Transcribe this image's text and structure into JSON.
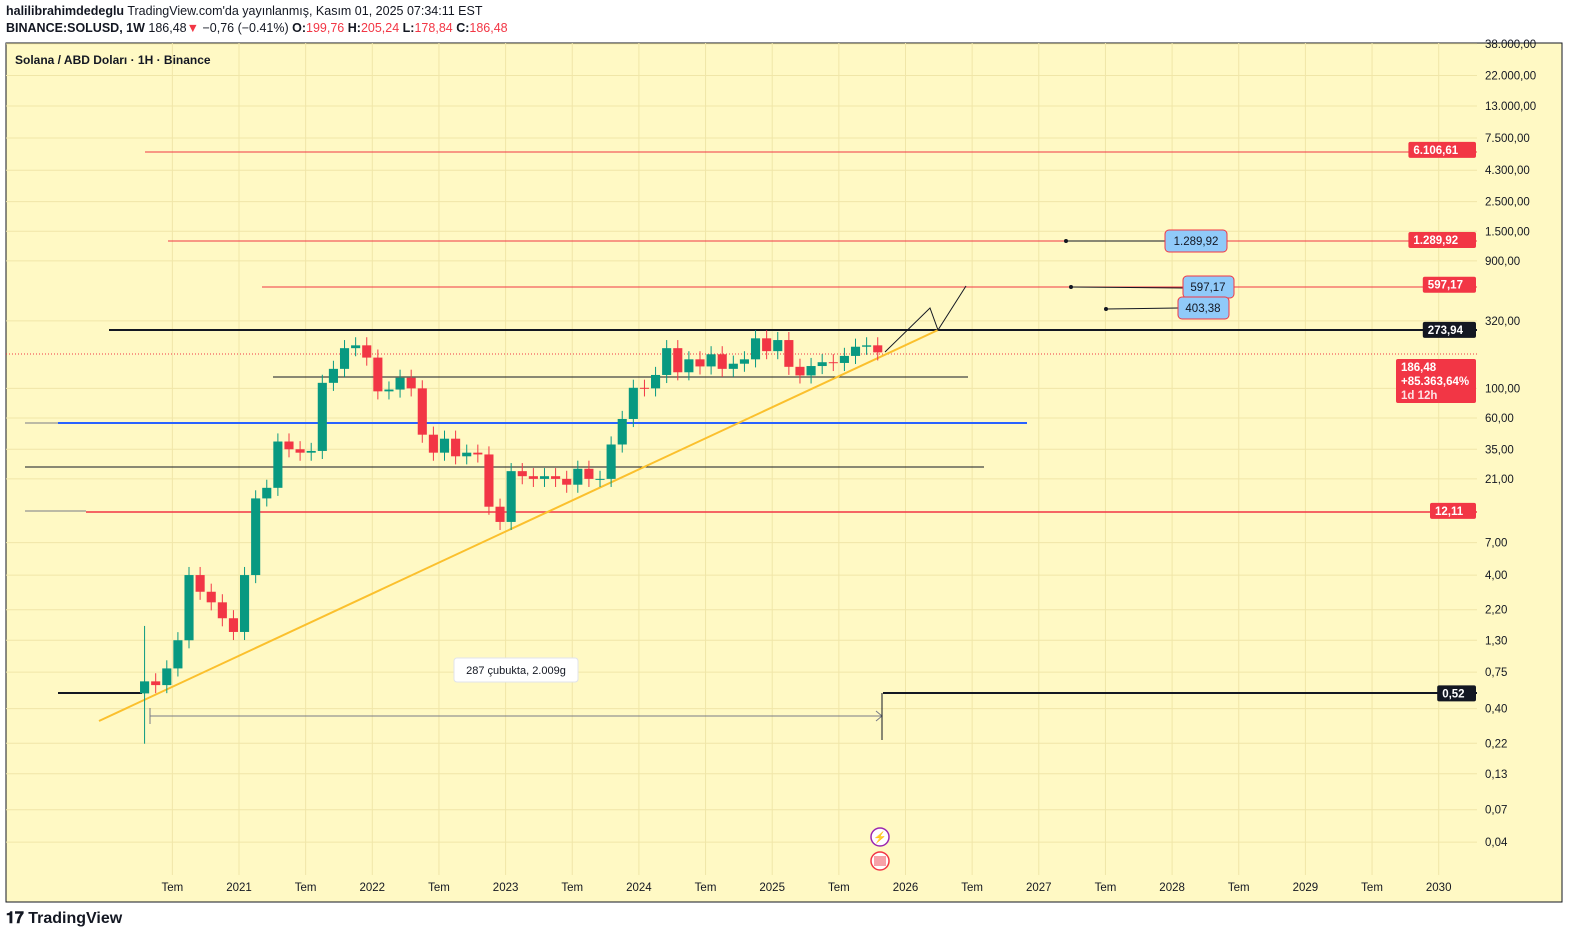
{
  "header": {
    "author": "halilibrahimdedeglu",
    "published": "TradingView.com'da yayınlanmış, Kasım 01, 2025 07:34:11 EST",
    "symbol": "BINANCE:SOLUSD, 1W",
    "last": "186,48",
    "change": "−0,76 (−0.41%)",
    "o_label": "O:",
    "o": "199,76",
    "h_label": "H:",
    "h": "205,24",
    "l_label": "L:",
    "l": "178,84",
    "c_label": "C:",
    "c": "186,48"
  },
  "legend": "Solana / ABD Doları · 1H · Binance",
  "footer": {
    "brand": "TradingView"
  },
  "colors": {
    "background": "#fff9c4",
    "up": "#089981",
    "down": "#f23645",
    "trend": "#fbc02d",
    "blue": "#2962ff"
  },
  "chart_data": {
    "type": "candlestick",
    "scale": "log",
    "grid": true,
    "x_ticks": [
      {
        "t": 2020.5,
        "label": "Tem"
      },
      {
        "t": 2021,
        "label": "2021"
      },
      {
        "t": 2021.5,
        "label": "Tem"
      },
      {
        "t": 2022,
        "label": "2022"
      },
      {
        "t": 2022.5,
        "label": "Tem"
      },
      {
        "t": 2023,
        "label": "2023"
      },
      {
        "t": 2023.5,
        "label": "Tem"
      },
      {
        "t": 2024,
        "label": "2024"
      },
      {
        "t": 2024.5,
        "label": "Tem"
      },
      {
        "t": 2025,
        "label": "2025"
      },
      {
        "t": 2025.5,
        "label": "Tem"
      },
      {
        "t": 2026,
        "label": "2026"
      },
      {
        "t": 2026.5,
        "label": "Tem"
      },
      {
        "t": 2027,
        "label": "2027"
      },
      {
        "t": 2027.5,
        "label": "Tem"
      },
      {
        "t": 2028,
        "label": "2028"
      },
      {
        "t": 2028.5,
        "label": "Tem"
      },
      {
        "t": 2029,
        "label": "2029"
      },
      {
        "t": 2029.5,
        "label": "Tem"
      },
      {
        "t": 2030,
        "label": "2030"
      }
    ],
    "y_ticks": [
      {
        "v": 38000,
        "label": "38.000,00"
      },
      {
        "v": 22000,
        "label": "22.000,00"
      },
      {
        "v": 13000,
        "label": "13.000,00"
      },
      {
        "v": 7500,
        "label": "7.500,00"
      },
      {
        "v": 4300,
        "label": "4.300,00"
      },
      {
        "v": 2500,
        "label": "2.500,00"
      },
      {
        "v": 1500,
        "label": "1.500,00"
      },
      {
        "v": 900,
        "label": "900,00"
      },
      {
        "v": 320,
        "label": "320,00"
      },
      {
        "v": 100,
        "label": "100,00"
      },
      {
        "v": 60,
        "label": "60,00"
      },
      {
        "v": 35,
        "label": "35,00"
      },
      {
        "v": 21,
        "label": "21,00"
      },
      {
        "v": 7,
        "label": "7,00"
      },
      {
        "v": 4,
        "label": "4,00"
      },
      {
        "v": 2.2,
        "label": "2,20"
      },
      {
        "v": 1.3,
        "label": "1,30"
      },
      {
        "v": 0.75,
        "label": "0,75"
      },
      {
        "v": 0.4,
        "label": "0,40"
      },
      {
        "v": 0.22,
        "label": "0,22"
      },
      {
        "v": 0.13,
        "label": "0,13"
      },
      {
        "v": 0.07,
        "label": "0,07"
      },
      {
        "v": 0.04,
        "label": "0,04"
      }
    ],
    "start": 2020.25,
    "monthly_close": [
      0.64,
      0.6,
      0.8,
      1.3,
      4.0,
      3.0,
      2.5,
      1.9,
      1.5,
      4.0,
      15,
      18,
      40,
      35,
      33,
      34,
      110,
      140,
      200,
      210,
      170,
      95,
      98,
      120,
      100,
      45,
      33,
      42,
      31,
      33,
      32,
      13,
      10,
      24,
      22,
      21,
      22,
      21,
      19,
      25,
      21,
      21,
      38,
      59,
      101,
      100,
      126,
      200,
      132,
      165,
      146,
      180,
      140,
      153,
      165,
      237,
      190,
      230,
      145,
      125,
      147,
      157,
      155,
      175,
      205,
      210,
      186
    ],
    "open_first": 0.52,
    "price_labels": [
      {
        "v": 6106.61,
        "label": "6.106,61",
        "color": "#f23645"
      },
      {
        "v": 1289.92,
        "label": "1.289,92",
        "color": "#f23645"
      },
      {
        "v": 597.17,
        "label": "597,17",
        "color": "#f23645"
      },
      {
        "v": 273.94,
        "label": "273,94",
        "color": "#131722"
      },
      {
        "v": 12.11,
        "label": "12,11",
        "color": "#f23645"
      },
      {
        "v": 0.52,
        "label": "0,52",
        "color": "#131722"
      }
    ],
    "current": {
      "price": "186,48",
      "pct": "+85.363,64%",
      "countdown": "1d 12h"
    },
    "callouts": [
      "1.289,92",
      "597,17",
      "403,38"
    ],
    "range_label": "287 çubukta, 2.009g"
  }
}
